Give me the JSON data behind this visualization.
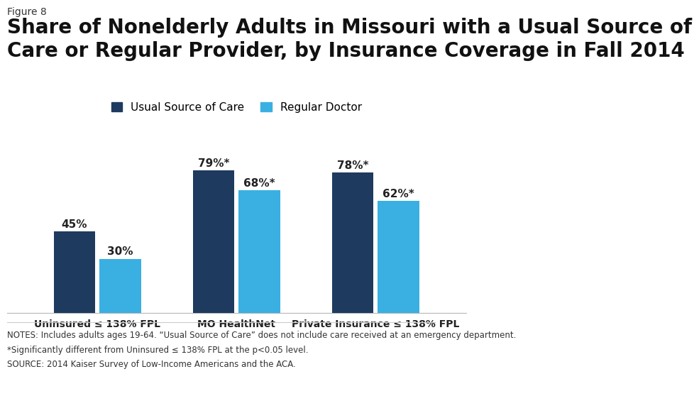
{
  "figure_label": "Figure 8",
  "title_line1": "Share of Nonelderly Adults in Missouri with a Usual Source of",
  "title_line2": "Care or Regular Provider, by Insurance Coverage in Fall 2014",
  "categories": [
    "Uninsured ≤ 138% FPL",
    "MO HealthNet",
    "Private Insurance ≤ 138% FPL"
  ],
  "series": [
    {
      "name": "Usual Source of Care",
      "values": [
        45,
        79,
        78
      ],
      "color": "#1e3a5f",
      "labels": [
        "45%",
        "79%*",
        "78%*"
      ]
    },
    {
      "name": "Regular Doctor",
      "values": [
        30,
        68,
        62
      ],
      "color": "#3ab0e2",
      "labels": [
        "30%",
        "68%*",
        "62%*"
      ]
    }
  ],
  "ylim": [
    0,
    100
  ],
  "bar_width": 0.3,
  "background_color": "#ffffff",
  "notes_line1": "NOTES: Includes adults ages 19-64. “Usual Source of Care” does not include care received at an emergency department.",
  "notes_line2": "*Significantly different from Uninsured ≤ 138% FPL at the p<0.05 level.",
  "notes_line3": "SOURCE: 2014 Kaiser Survey of Low-Income Americans and the ACA.",
  "title_fontsize": 20,
  "figure_label_fontsize": 10,
  "legend_fontsize": 11,
  "bar_label_fontsize": 11,
  "axis_label_fontsize": 10,
  "notes_fontsize": 8.5,
  "logo_color": "#1e3a5f"
}
